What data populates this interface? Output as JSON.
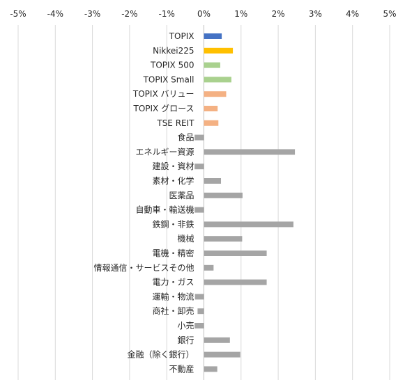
{
  "chart_data": {
    "type": "bar",
    "orientation": "horizontal",
    "title": "",
    "xlabel": "",
    "ylabel": "",
    "xlim": [
      -5,
      5
    ],
    "x_ticks": [
      -5,
      -4,
      -3,
      -2,
      -1,
      0,
      1,
      2,
      3,
      4,
      5
    ],
    "x_tick_labels": [
      "-5%",
      "-4%",
      "-3%",
      "-2%",
      "-1%",
      "0%",
      "1%",
      "2%",
      "3%",
      "4%",
      "5%"
    ],
    "x_axis_position": "top",
    "grid": true,
    "legend": "none",
    "categories": [
      "TOPIX",
      "Nikkei225",
      "TOPIX 500",
      "TOPIX Small",
      "TOPIX バリュー",
      "TOPIX グロース",
      "TSE REIT",
      "食品",
      "エネルギー資源",
      "建設・資材",
      "素材・化学",
      "医薬品",
      "自動車・輸送機",
      "鉄鋼・非鉄",
      "機械",
      "電機・精密",
      "情報通信・サービスその他",
      "電力・ガス",
      "運輸・物流",
      "商社・卸売",
      "小売",
      "銀行",
      "金融（除く銀行）",
      "不動産"
    ],
    "values": [
      0.48,
      0.78,
      0.44,
      0.74,
      0.6,
      0.37,
      0.39,
      -0.25,
      2.45,
      -0.25,
      0.46,
      1.04,
      -0.25,
      2.41,
      1.03,
      1.69,
      0.26,
      1.69,
      -0.24,
      -0.17,
      -0.25,
      0.7,
      0.98,
      0.36
    ],
    "colors": [
      "#4472c4",
      "#ffc000",
      "#a9d18e",
      "#a9d18e",
      "#f4b183",
      "#f4b183",
      "#f4b183",
      "#a5a5a5",
      "#a5a5a5",
      "#a5a5a5",
      "#a5a5a5",
      "#a5a5a5",
      "#a5a5a5",
      "#a5a5a5",
      "#a5a5a5",
      "#a5a5a5",
      "#a5a5a5",
      "#a5a5a5",
      "#a5a5a5",
      "#a5a5a5",
      "#a5a5a5",
      "#a5a5a5",
      "#a5a5a5",
      "#a5a5a5"
    ]
  }
}
